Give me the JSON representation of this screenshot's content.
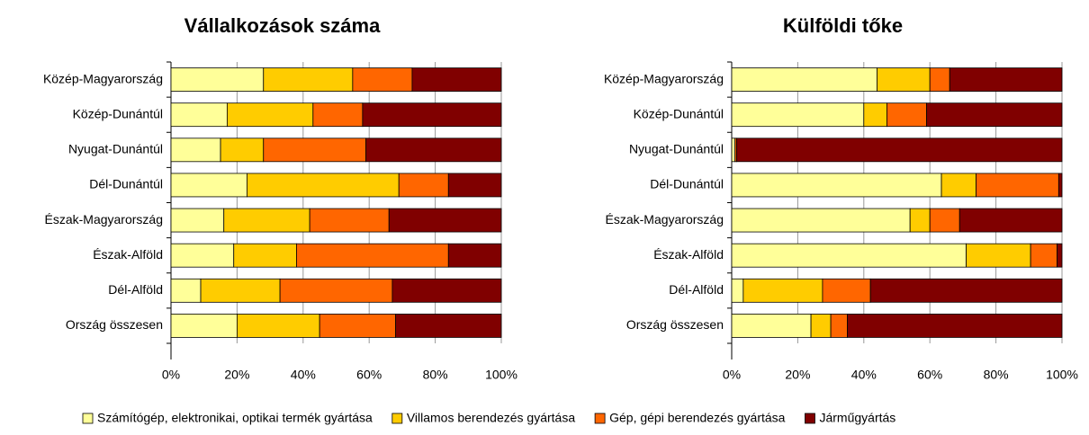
{
  "chart_data": [
    {
      "type": "bar",
      "orientation": "horizontal",
      "stacked": "percent",
      "title": "Vállalkozások száma",
      "categories": [
        "Közép-Magyarország",
        "Közép-Dunántúl",
        "Nyugat-Dunántúl",
        "Dél-Dunántúl",
        "Észak-Magyarország",
        "Észak-Alföld",
        "Dél-Alföld",
        "Ország összesen"
      ],
      "series": [
        {
          "name": "Számítógép, elektronikai, optikai termék gyártása",
          "color": "#ffff99",
          "values": [
            28,
            17,
            15,
            23,
            16,
            19,
            9,
            20
          ]
        },
        {
          "name": "Villamos berendezés gyártása",
          "color": "#ffcc00",
          "values": [
            27,
            26,
            13,
            46,
            26,
            19,
            24,
            25
          ]
        },
        {
          "name": "Gép, gépi berendezés gyártása",
          "color": "#ff6600",
          "values": [
            18,
            15,
            31,
            15,
            24,
            46,
            34,
            23
          ]
        },
        {
          "name": "Járműgyártás",
          "color": "#800000",
          "values": [
            27,
            42,
            41,
            16,
            34,
            16,
            33,
            32
          ]
        }
      ],
      "xlim": [
        0,
        100
      ],
      "xticks": [
        {
          "value": 0,
          "label": "0%"
        },
        {
          "value": 20,
          "label": "20%"
        },
        {
          "value": 40,
          "label": "40%"
        },
        {
          "value": 60,
          "label": "60%"
        },
        {
          "value": 80,
          "label": "80%"
        },
        {
          "value": 100,
          "label": "100%"
        }
      ],
      "grid": true
    },
    {
      "type": "bar",
      "orientation": "horizontal",
      "stacked": "percent",
      "title": "Külföldi tőke",
      "categories": [
        "Közép-Magyarország",
        "Közép-Dunántúl",
        "Nyugat-Dunántúl",
        "Dél-Dunántúl",
        "Észak-Magyarország",
        "Észak-Alföld",
        "Dél-Alföld",
        "Ország összesen"
      ],
      "series": [
        {
          "color": "#ffff99",
          "values": [
            44,
            40,
            1,
            63.5,
            54,
            71,
            3.5,
            24
          ]
        },
        {
          "color": "#ffcc00",
          "values": [
            16,
            7,
            0,
            10.5,
            6,
            19.5,
            24,
            6
          ]
        },
        {
          "color": "#ff6600",
          "values": [
            6,
            12,
            0.5,
            25,
            9,
            8,
            14.5,
            5
          ]
        },
        {
          "color": "#800000",
          "values": [
            34,
            41,
            98.5,
            1,
            31,
            1.5,
            58,
            65
          ]
        }
      ],
      "xlim": [
        0,
        100
      ],
      "xticks": [
        {
          "value": 0,
          "label": "0%"
        },
        {
          "value": 20,
          "label": "20%"
        },
        {
          "value": 40,
          "label": "40%"
        },
        {
          "value": 60,
          "label": "60%"
        },
        {
          "value": 80,
          "label": "80%"
        },
        {
          "value": 100,
          "label": "100%"
        }
      ],
      "grid": true
    }
  ]
}
